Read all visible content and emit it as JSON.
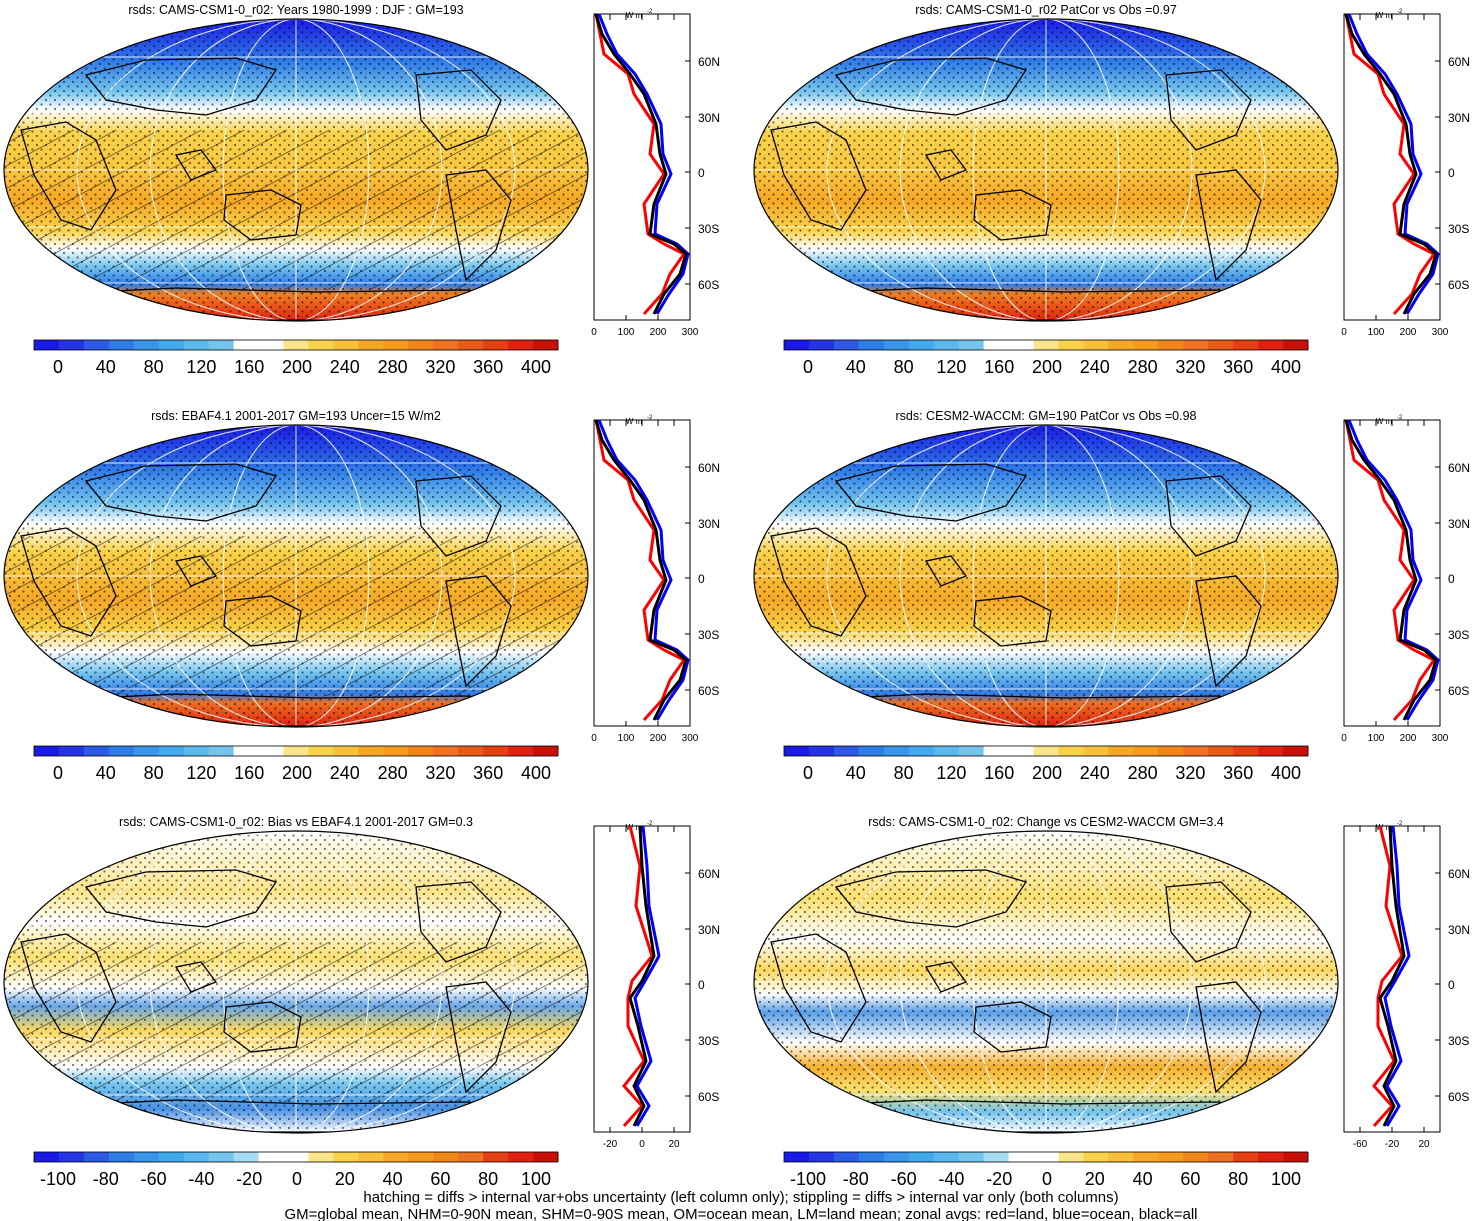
{
  "chart_data": [
    {
      "type": "heatmap",
      "title": "rsds: CAMS-CSM1-0_r02: Years 1980-1999 : DJF : GM=193",
      "colorbar_ticks": [
        "0",
        "40",
        "80",
        "120",
        "160",
        "200",
        "240",
        "280",
        "320",
        "360",
        "400"
      ],
      "zonal_ticks_x": [
        "0",
        "100",
        "200",
        "300"
      ],
      "lat_ticks": [
        "60N",
        "30N",
        "0",
        "30S",
        "60S"
      ],
      "zonal_unit": "W m",
      "zonal_unit_exp": "-2"
    },
    {
      "type": "heatmap",
      "title": "rsds: CAMS-CSM1-0_r02 PatCor vs Obs =0.97",
      "colorbar_ticks": [
        "0",
        "40",
        "80",
        "120",
        "160",
        "200",
        "240",
        "280",
        "320",
        "360",
        "400"
      ],
      "zonal_ticks_x": [
        "0",
        "100",
        "200",
        "300"
      ],
      "lat_ticks": [
        "60N",
        "30N",
        "0",
        "30S",
        "60S"
      ],
      "zonal_unit": "W m",
      "zonal_unit_exp": "-2"
    },
    {
      "type": "heatmap",
      "title": "rsds: EBAF4.1 2001-2017 GM=193 Uncer=15 W/m2",
      "colorbar_ticks": [
        "0",
        "40",
        "80",
        "120",
        "160",
        "200",
        "240",
        "280",
        "320",
        "360",
        "400"
      ],
      "zonal_ticks_x": [
        "0",
        "100",
        "200",
        "300"
      ],
      "lat_ticks": [
        "60N",
        "30N",
        "0",
        "30S",
        "60S"
      ],
      "zonal_unit": "W m",
      "zonal_unit_exp": "-2"
    },
    {
      "type": "heatmap",
      "title": "rsds: CESM2-WACCM: GM=190 PatCor vs Obs =0.98",
      "colorbar_ticks": [
        "0",
        "40",
        "80",
        "120",
        "160",
        "200",
        "240",
        "280",
        "320",
        "360",
        "400"
      ],
      "zonal_ticks_x": [
        "0",
        "100",
        "200",
        "300"
      ],
      "lat_ticks": [
        "60N",
        "30N",
        "0",
        "30S",
        "60S"
      ],
      "zonal_unit": "W m",
      "zonal_unit_exp": "-2"
    },
    {
      "type": "heatmap",
      "title": "rsds: CAMS-CSM1-0_r02: Bias vs EBAF4.1 2001-2017 GM=0.3",
      "colorbar_ticks": [
        "-100",
        "-80",
        "-60",
        "-40",
        "-20",
        "0",
        "20",
        "40",
        "60",
        "80",
        "100"
      ],
      "zonal_ticks_x": [
        "-20",
        "0",
        "20"
      ],
      "lat_ticks": [
        "60N",
        "30N",
        "0",
        "30S",
        "60S"
      ],
      "zonal_unit": "W m",
      "zonal_unit_exp": "-2"
    },
    {
      "type": "heatmap",
      "title": "rsds: CAMS-CSM1-0_r02: Change vs CESM2-WACCM GM=3.4",
      "colorbar_ticks": [
        "-100",
        "-80",
        "-60",
        "-40",
        "-20",
        "0",
        "20",
        "40",
        "60",
        "80",
        "100"
      ],
      "zonal_ticks_x": [
        "-60",
        "-20",
        "20"
      ],
      "lat_ticks": [
        "60N",
        "30N",
        "0",
        "30S",
        "60S"
      ],
      "zonal_unit": "W m",
      "zonal_unit_exp": "-2"
    }
  ],
  "colors": {
    "blue_cold": "#1a1ae6",
    "blue": "#2f7be8",
    "cyan": "#74c4ee",
    "white": "#ffffff",
    "yellow": "#f8d24a",
    "orange": "#f59a1c",
    "red": "#e02010",
    "curve_land": "#ff0000",
    "curve_ocean": "#0000ff",
    "curve_all": "#000000"
  },
  "footer": {
    "line1": "hatching = diffs > internal var+obs uncertainty (left column only); stippling = diffs > internal var only (both columns)",
    "line2": "GM=global mean, NHM=0-90N mean, SHM=0-90S mean, OM=ocean mean, LM=land mean; zonal avgs: red=land, blue=ocean, black=all"
  }
}
